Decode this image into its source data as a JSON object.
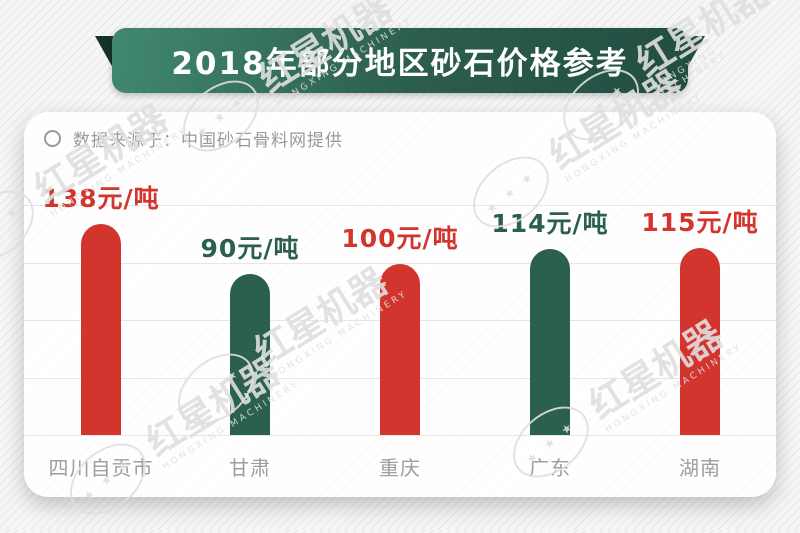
{
  "banner": {
    "title": "2018年部分地区砂石价格参考"
  },
  "source": {
    "text": "数据来源于：中国砂石骨料网提供"
  },
  "watermark": {
    "brand": "红星机器",
    "subtitle": "HONGXING MACHINERY",
    "stamp_stars": "★ ★ ★"
  },
  "colors": {
    "red": "#d2342e",
    "green": "#2b5f4f",
    "banner_gradient_left": "#41886f",
    "banner_gradient_right": "#224e42",
    "gridline": "#e6e6e6",
    "label_gray": "#9e9e9e"
  },
  "chart_data": {
    "type": "bar",
    "title": "2018年部分地区砂石价格参考",
    "source": "数据来源于：中国砂石骨料网提供",
    "categories": [
      "四川自贡市",
      "甘肃",
      "重庆",
      "广东",
      "湖南"
    ],
    "values": [
      138,
      90,
      100,
      114,
      115
    ],
    "unit": "元/吨",
    "value_labels": [
      "138元/吨",
      "90元/吨",
      "100元/吨",
      "114元/吨",
      "115元/吨"
    ],
    "bar_colors": [
      "#d2342e",
      "#2b5f4f",
      "#d2342e",
      "#2b5f4f",
      "#d2342e"
    ],
    "xlabel": "",
    "ylabel": "",
    "grid": true,
    "legend": false
  }
}
